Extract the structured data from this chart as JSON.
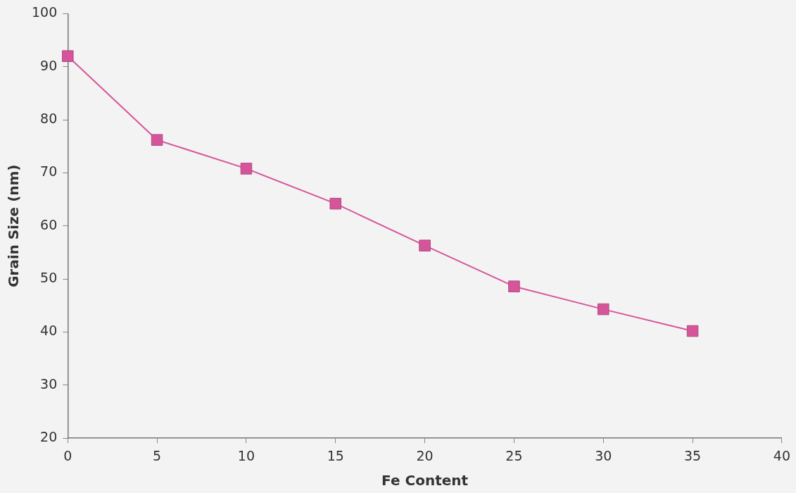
{
  "chart_data": {
    "type": "line",
    "xlabel": "Fe Content",
    "ylabel": "Grain Size (nm)",
    "x": [
      0,
      5,
      10,
      15,
      20,
      25,
      30,
      35
    ],
    "series": [
      {
        "color": "#d6559a",
        "values": [
          92,
          76.2,
          70.8,
          64.2,
          56.3,
          48.6,
          44.3,
          40.2
        ]
      }
    ],
    "xlim": [
      0,
      40
    ],
    "xticks": [
      0,
      5,
      10,
      15,
      20,
      25,
      30,
      35,
      40
    ],
    "ylim": [
      20,
      100
    ],
    "yticks": [
      20,
      30,
      40,
      50,
      60,
      70,
      80,
      90,
      100
    ],
    "grid": false,
    "legend": false,
    "marker": "square",
    "line_style": "solid"
  }
}
